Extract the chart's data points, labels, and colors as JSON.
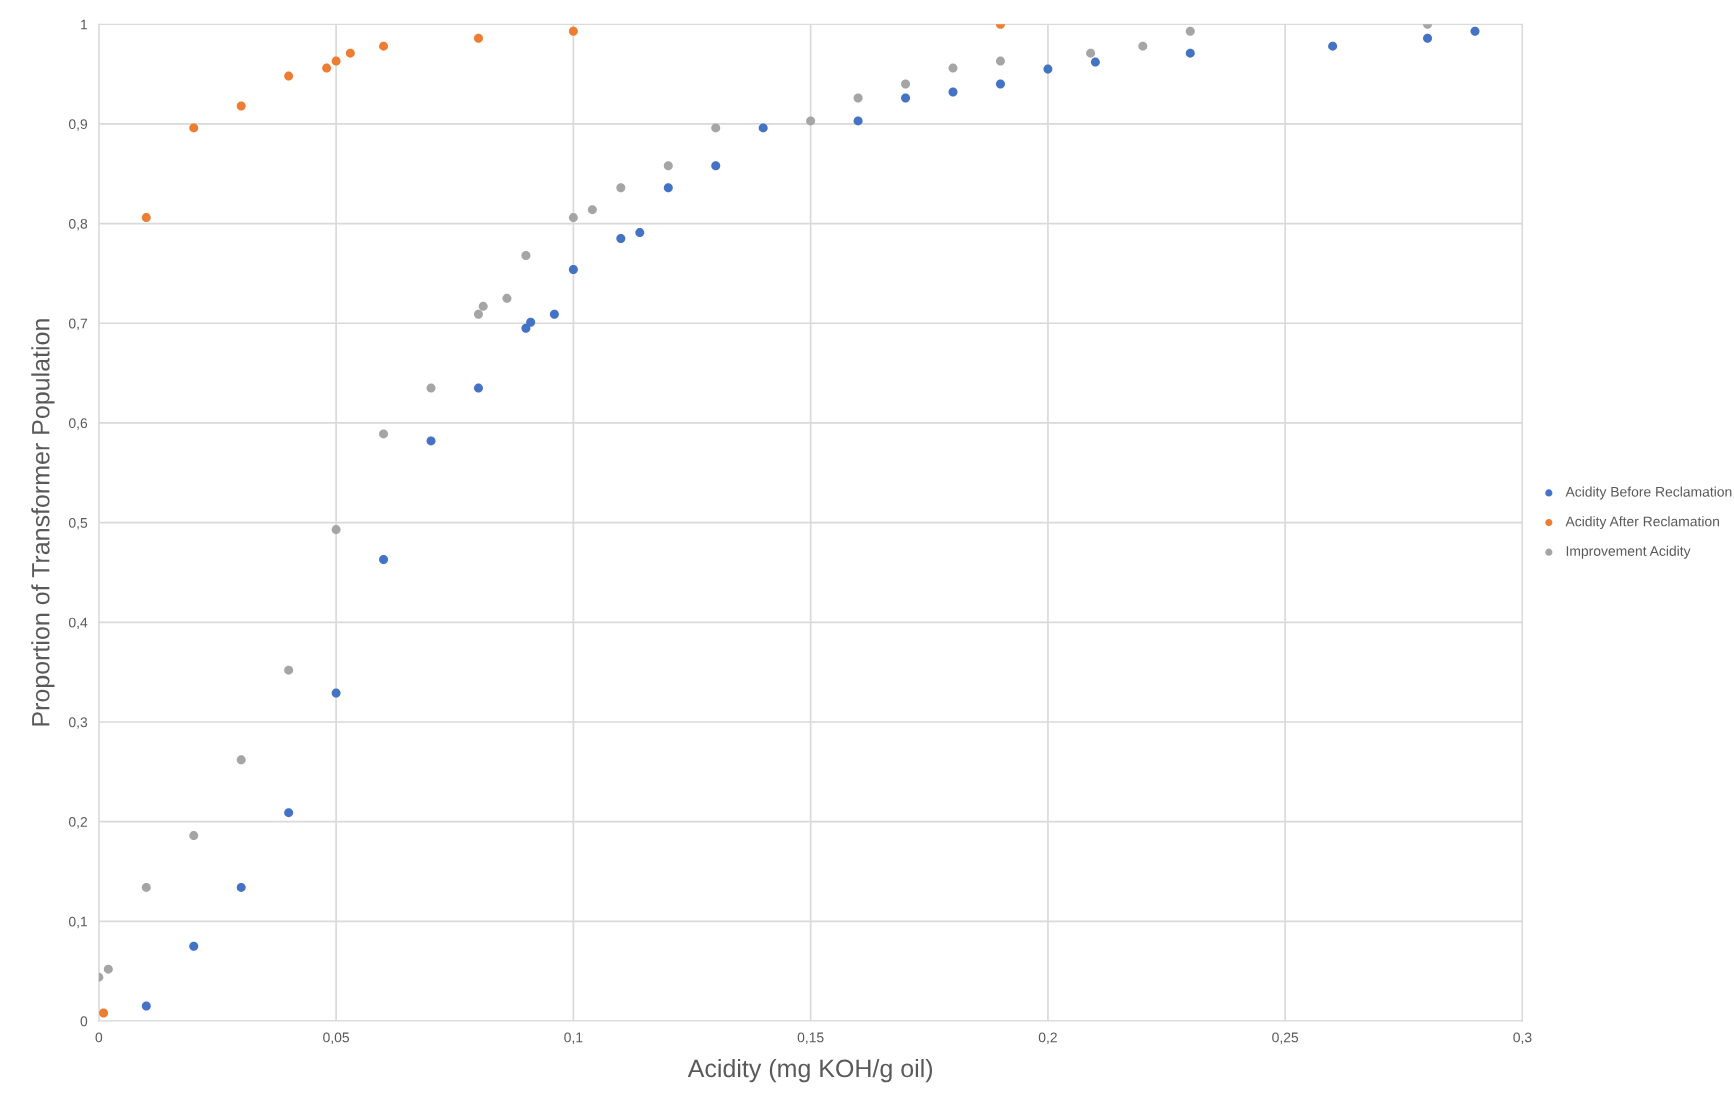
{
  "chart_data": {
    "type": "scatter",
    "xlabel": "Acidity (mg KOH/g oil)",
    "ylabel": "Proportion of Transformer Population",
    "xlim": [
      0,
      0.3
    ],
    "ylim": [
      0,
      1
    ],
    "xticks": [
      0,
      {
        "value": 0.05,
        "label": "0,05"
      },
      {
        "value": 0.1,
        "label": "0,1"
      },
      {
        "value": 0.15,
        "label": "0,15"
      },
      {
        "value": 0.2,
        "label": "0,2"
      },
      {
        "value": 0.25,
        "label": "0,25"
      },
      {
        "value": 0.3,
        "label": "0,3"
      }
    ],
    "yticks": [
      0,
      {
        "value": 0.1,
        "label": "0,1"
      },
      {
        "value": 0.2,
        "label": "0,2"
      },
      {
        "value": 0.3,
        "label": "0,3"
      },
      {
        "value": 0.4,
        "label": "0,4"
      },
      {
        "value": 0.5,
        "label": "0,5"
      },
      {
        "value": 0.6,
        "label": "0,6"
      },
      {
        "value": 0.7,
        "label": "0,7"
      },
      {
        "value": 0.8,
        "label": "0,8"
      },
      {
        "value": 0.9,
        "label": "0,9"
      },
      1
    ],
    "grid": true,
    "legend": "right",
    "marker": "circle",
    "series": [
      {
        "name": "Acidity Before Reclamation",
        "color": "#4472c4",
        "x": [
          0.01,
          0.02,
          0.03,
          0.04,
          0.05,
          0.06,
          0.07,
          0.08,
          0.09,
          0.091,
          0.096,
          0.1,
          0.11,
          0.114,
          0.12,
          0.13,
          0.14,
          0.16,
          0.17,
          0.18,
          0.19,
          0.2,
          0.21,
          0.23,
          0.26,
          0.28,
          0.29
        ],
        "values": [
          0.015,
          0.075,
          0.134,
          0.209,
          0.329,
          0.463,
          0.582,
          0.635,
          0.695,
          0.701,
          0.709,
          0.754,
          0.785,
          0.791,
          0.836,
          0.858,
          0.896,
          0.903,
          0.926,
          0.932,
          0.94,
          0.955,
          0.962,
          0.971,
          0.978,
          0.986,
          0.993
        ]
      },
      {
        "name": "Acidity After Reclamation",
        "color": "#ed7d31",
        "x": [
          0.001,
          0.01,
          0.02,
          0.03,
          0.04,
          0.048,
          0.05,
          0.053,
          0.06,
          0.08,
          0.1,
          0.19
        ],
        "values": [
          0.008,
          0.806,
          0.896,
          0.918,
          0.948,
          0.956,
          0.963,
          0.971,
          0.978,
          0.986,
          0.993,
          1.0
        ]
      },
      {
        "name": "Improvement Acidity",
        "color": "#a5a5a5",
        "x": [
          0.0,
          0.002,
          0.01,
          0.02,
          0.03,
          0.04,
          0.05,
          0.06,
          0.07,
          0.08,
          0.081,
          0.086,
          0.09,
          0.1,
          0.104,
          0.11,
          0.12,
          0.13,
          0.15,
          0.16,
          0.17,
          0.18,
          0.19,
          0.209,
          0.22,
          0.23,
          0.28
        ],
        "values": [
          0.044,
          0.052,
          0.134,
          0.186,
          0.262,
          0.352,
          0.493,
          0.589,
          0.635,
          0.709,
          0.717,
          0.725,
          0.768,
          0.806,
          0.814,
          0.836,
          0.858,
          0.896,
          0.903,
          0.926,
          0.94,
          0.956,
          0.963,
          0.971,
          0.978,
          0.993,
          1.0
        ]
      }
    ]
  }
}
